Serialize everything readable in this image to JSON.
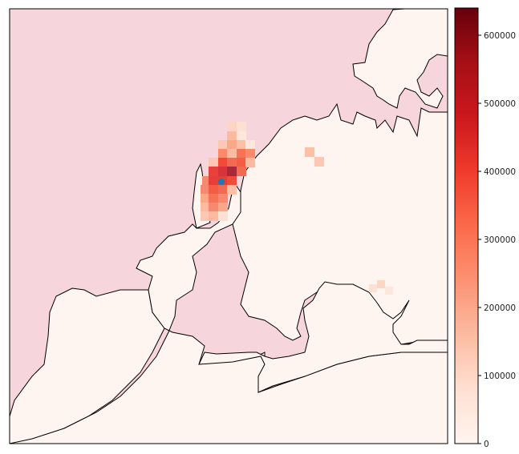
{
  "chart_data": {
    "type": "heatmap",
    "title": "",
    "xlabel": "",
    "ylabel": "",
    "colormap": "Reds",
    "colorbar": {
      "min": 0,
      "max": 640000,
      "ticks": [
        0,
        100000,
        200000,
        300000,
        400000,
        500000,
        600000
      ],
      "tick_labels": [
        "0",
        "100000",
        "200000",
        "300000",
        "400000",
        "500000",
        "600000"
      ]
    },
    "marker": {
      "shape": "circle",
      "color": "#1f77b4"
    }
  },
  "colors": {
    "land_fill": "#f6d6dc",
    "water_fill": "#fff5f0",
    "coastline": "#000000",
    "marker": "#1f77b4"
  }
}
